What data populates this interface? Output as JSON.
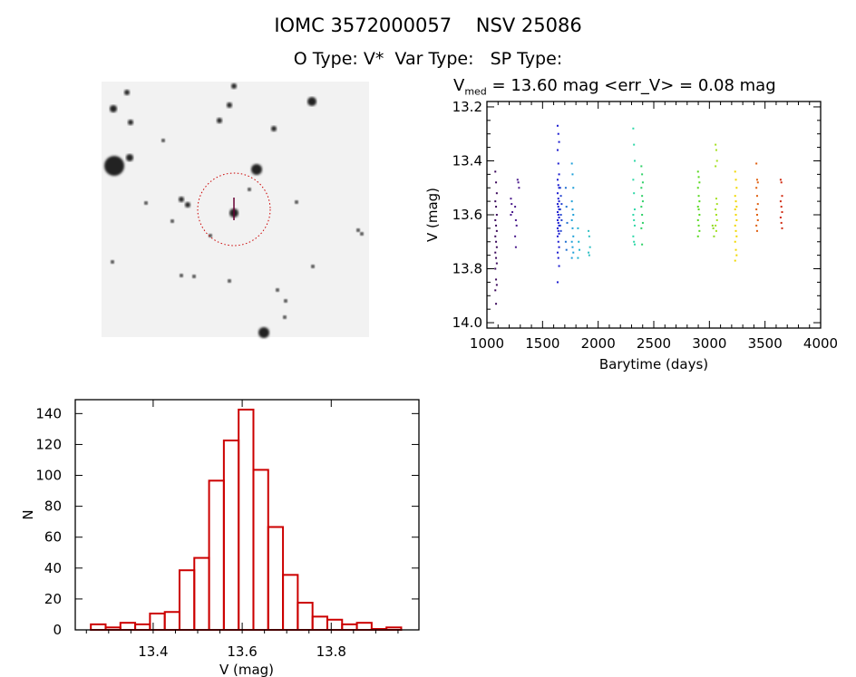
{
  "header": {
    "title": "IOMC 3572000057    NSV 25086",
    "subtitle": "O Type: V*  Var Type:   SP Type:"
  },
  "finder_chart": {
    "image": "sky-field-negative",
    "marker_color": "#cc0000"
  },
  "chart_data": [
    {
      "type": "scatter",
      "title_prefix": "V",
      "title_sub": "med",
      "title_rest": " = 13.60 mag <err_V> = 0.08 mag",
      "xlabel": "Barytime (days)",
      "ylabel": "V (mag)",
      "xlim": [
        1000,
        4000
      ],
      "ylim": [
        14.02,
        13.18
      ],
      "y_reversed": true,
      "xticks": [
        "1000",
        "1500",
        "2000",
        "2500",
        "3000",
        "3500",
        "4000"
      ],
      "yticks": [
        "13.2",
        "13.4",
        "13.6",
        "13.8",
        "14.0"
      ],
      "grid": false,
      "clusters": [
        {
          "t": 1082,
          "color": "#3c0a5c",
          "v": [
            13.44,
            13.48,
            13.52,
            13.55,
            13.57,
            13.6,
            13.62,
            13.64,
            13.66,
            13.68,
            13.7,
            13.72,
            13.74,
            13.76,
            13.78,
            13.8,
            13.84,
            13.86,
            13.88,
            13.93
          ]
        },
        {
          "t": 1222,
          "color": "#4a1a8c",
          "v": [
            13.54,
            13.56,
            13.59,
            13.6
          ]
        },
        {
          "t": 1260,
          "color": "#4a1a8c",
          "v": [
            13.57,
            13.62,
            13.64,
            13.68,
            13.72
          ]
        },
        {
          "t": 1282,
          "color": "#4a1a8c",
          "v": [
            13.47,
            13.48,
            13.5
          ]
        },
        {
          "t": 1642,
          "color": "#1a1ad0",
          "v": [
            13.27,
            13.3,
            13.33,
            13.36,
            13.41,
            13.45,
            13.47,
            13.49,
            13.5,
            13.52,
            13.54,
            13.55,
            13.56,
            13.57,
            13.58,
            13.59,
            13.6,
            13.61,
            13.62,
            13.63,
            13.64,
            13.65,
            13.66,
            13.67,
            13.68,
            13.7,
            13.72,
            13.74,
            13.76,
            13.79,
            13.85
          ]
        },
        {
          "t": 1665,
          "color": "#2040d0",
          "v": [
            13.5,
            13.53,
            13.56,
            13.58,
            13.6,
            13.62,
            13.64,
            13.66
          ]
        },
        {
          "t": 1715,
          "color": "#2070d0",
          "v": [
            13.5,
            13.57,
            13.63,
            13.7,
            13.73
          ]
        },
        {
          "t": 1770,
          "color": "#20a0d8",
          "v": [
            13.41,
            13.45,
            13.5,
            13.55,
            13.58,
            13.6,
            13.62,
            13.65,
            13.68,
            13.7,
            13.72,
            13.74,
            13.76
          ]
        },
        {
          "t": 1825,
          "color": "#20b4d0",
          "v": [
            13.65,
            13.7,
            13.73,
            13.76
          ]
        },
        {
          "t": 1920,
          "color": "#30c0c4",
          "v": [
            13.66,
            13.68,
            13.72,
            13.74,
            13.75
          ]
        },
        {
          "t": 2322,
          "color": "#30d8a8",
          "v": [
            13.28,
            13.34,
            13.4,
            13.47,
            13.52,
            13.58,
            13.6,
            13.62,
            13.64,
            13.68,
            13.7,
            13.71
          ]
        },
        {
          "t": 2395,
          "color": "#30d068",
          "v": [
            13.42,
            13.45,
            13.48,
            13.5,
            13.53,
            13.55,
            13.57,
            13.6,
            13.63,
            13.65,
            13.71
          ]
        },
        {
          "t": 2904,
          "color": "#58d820",
          "v": [
            13.44,
            13.46,
            13.48,
            13.5,
            13.53,
            13.55,
            13.57,
            13.58,
            13.6,
            13.62,
            13.64,
            13.66,
            13.68
          ]
        },
        {
          "t": 3035,
          "color": "#8cd820",
          "v": [
            13.64,
            13.65,
            13.68
          ]
        },
        {
          "t": 3062,
          "color": "#a4e020",
          "v": [
            13.34,
            13.36,
            13.4,
            13.42,
            13.54,
            13.56,
            13.58,
            13.6,
            13.62,
            13.64,
            13.66
          ]
        },
        {
          "t": 3238,
          "color": "#f0d800",
          "v": [
            13.44,
            13.47,
            13.5,
            13.53,
            13.55,
            13.57,
            13.58,
            13.6,
            13.62,
            13.64,
            13.66,
            13.68,
            13.7,
            13.73,
            13.75,
            13.77
          ]
        },
        {
          "t": 3429,
          "color": "#e06010",
          "v": [
            13.41,
            13.47,
            13.48,
            13.5,
            13.53,
            13.56,
            13.58,
            13.6,
            13.62,
            13.64,
            13.66
          ]
        },
        {
          "t": 3647,
          "color": "#d02a10",
          "v": [
            13.47,
            13.48,
            13.53,
            13.55,
            13.57,
            13.59,
            13.61,
            13.63,
            13.65
          ]
        }
      ]
    },
    {
      "type": "bar",
      "subtype": "histogram",
      "xlabel": "V (mag)",
      "ylabel": "N",
      "xlim": [
        13.225,
        13.997
      ],
      "ylim": [
        0,
        149
      ],
      "xticks": [
        "13.4",
        "13.6",
        "13.8"
      ],
      "yticks": [
        "0",
        "20",
        "40",
        "60",
        "80",
        "100",
        "120",
        "140"
      ],
      "bin_start": 13.26,
      "bin_width": 0.0332,
      "values": [
        3,
        1,
        4,
        3,
        10,
        11,
        38,
        46,
        96,
        122,
        142,
        103,
        66,
        35,
        17,
        8,
        6,
        3,
        4,
        0,
        1
      ],
      "color": "#cc0000",
      "grid": false
    }
  ]
}
